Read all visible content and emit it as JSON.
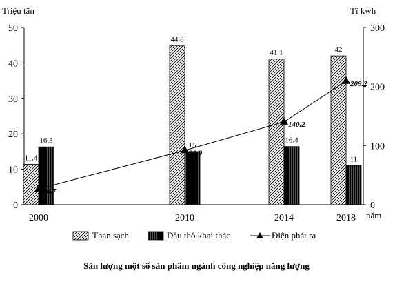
{
  "chart_data": {
    "type": "bar+line",
    "title": "Sản lượng một số sản phẩm ngành công nghiệp năng lượng",
    "categories": [
      "2000",
      "2010",
      "2014",
      "2018"
    ],
    "xlabel": "năm",
    "ylabel_left": "Triệu tấn",
    "ylabel_right": "Tỉ kwh",
    "ylim_left": [
      0,
      50
    ],
    "yticks_left": [
      "0",
      "10",
      "20",
      "30",
      "40",
      "50"
    ],
    "ylim_right": [
      0,
      300
    ],
    "yticks_right": [
      "0",
      "100",
      "200",
      "300"
    ],
    "series": [
      {
        "name": "Than sạch",
        "kind": "bar",
        "axis": "left",
        "pattern": "diagonal-hatch",
        "values": [
          11.4,
          44.8,
          41.1,
          42
        ],
        "labels": [
          "11.4",
          "44.8",
          "41.1",
          "42"
        ]
      },
      {
        "name": "Dầu thô khai thác",
        "kind": "bar",
        "axis": "left",
        "pattern": "dense-vertical",
        "values": [
          16.3,
          15,
          16.4,
          11
        ],
        "labels": [
          "16.3",
          "15",
          "16.4",
          "11"
        ]
      },
      {
        "name": "Điện phát ra",
        "kind": "line",
        "axis": "right",
        "marker": "triangle",
        "values": [
          26.7,
          91.9,
          140.2,
          209.2
        ],
        "labels": [
          "26.7",
          "91.9",
          "140.2",
          "209.2"
        ]
      }
    ],
    "legend_position": "bottom",
    "grid": false
  }
}
